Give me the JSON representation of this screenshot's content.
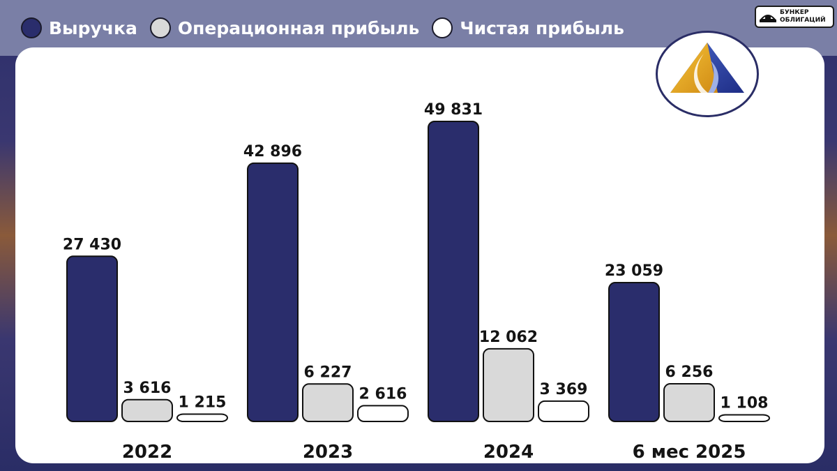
{
  "badge": {
    "line1": "БУНКЕР",
    "line2": "ОБЛИГАЦИЙ"
  },
  "colors": {
    "revenue": "#2a2d6c",
    "operating": "#d9d9d9",
    "net": "#ffffff"
  },
  "chart_data": {
    "type": "bar",
    "categories": [
      "2022",
      "2023",
      "2024",
      "6 мес 2025"
    ],
    "series": [
      {
        "name": "Выручка",
        "values": [
          27430,
          42896,
          49831,
          23059
        ],
        "labels": [
          "27 430",
          "42 896",
          "49 831",
          "23 059"
        ]
      },
      {
        "name": "Операционная прибыль",
        "values": [
          3616,
          6227,
          12062,
          6256
        ],
        "labels": [
          "3 616",
          "6 227",
          "12 062",
          "6 256"
        ]
      },
      {
        "name": "Чистая прибыль",
        "values": [
          1215,
          2616,
          3369,
          1108
        ],
        "labels": [
          "1 215",
          "2 616",
          "3 369",
          "1 108"
        ]
      }
    ],
    "legend": "top-left",
    "grid": false
  }
}
